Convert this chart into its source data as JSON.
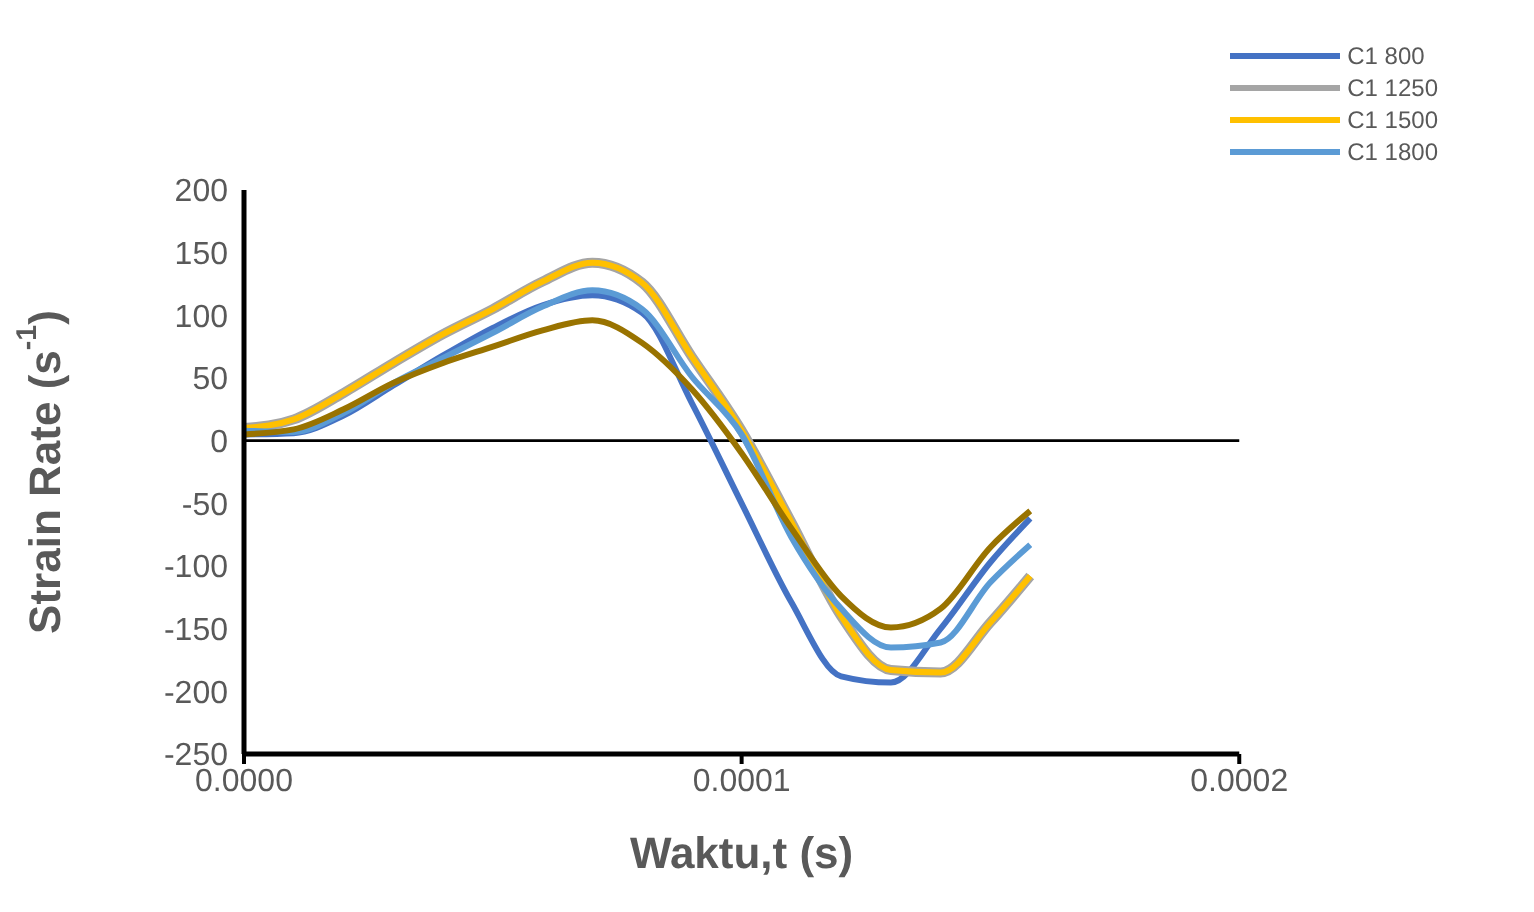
{
  "chart_data": {
    "type": "line",
    "xlabel": "Waktu,t (s)",
    "ylabel": "Strain Rate (s$^{-1}$)",
    "x": [
      0,
      1e-05,
      2e-05,
      3e-05,
      4e-05,
      5e-05,
      6e-05,
      7e-05,
      8e-05,
      9e-05,
      0.0001,
      0.00011,
      0.00012,
      0.00013,
      0.00014,
      0.00015,
      0.000158
    ],
    "series": [
      {
        "name": "C1 800",
        "color": "#4472c4",
        "values": [
          5,
          6,
          20,
          44,
          68,
          90,
          108,
          116,
          102,
          30,
          -50,
          -129,
          -188,
          -193,
          -150,
          -97,
          -62
        ]
      },
      {
        "name": "C1 1250",
        "color": "#a5a5a5",
        "values": [
          10,
          17,
          38,
          62,
          85,
          105,
          127,
          142,
          126,
          67,
          8,
          -65,
          -140,
          -183,
          -185,
          -145,
          -108
        ]
      },
      {
        "name": "C1 1500",
        "color": "#ffc000",
        "values": [
          10,
          17,
          38,
          62,
          85,
          105,
          127,
          142,
          126,
          67,
          8,
          -65,
          -140,
          -183,
          -185,
          -145,
          -108
        ]
      },
      {
        "name": "C1 1800",
        "color": "#5b9bd5",
        "values": [
          8,
          7,
          22,
          46,
          66,
          86,
          107,
          120,
          105,
          51,
          5,
          -77,
          -134,
          -165,
          -161,
          -113,
          -83
        ]
      },
      {
        "color": "#997300",
        "values": [
          5,
          9,
          25,
          46,
          62,
          75,
          88,
          96,
          78,
          41,
          -10,
          -70,
          -124,
          -149,
          -134,
          -85,
          -56
        ]
      }
    ],
    "xlim": [
      0,
      0.0002
    ],
    "xticks": [
      {
        "value": 0,
        "label": "0.0000"
      },
      {
        "value": 0.0001,
        "label": "0.0001"
      },
      {
        "value": 0.0002,
        "label": "0.0002"
      }
    ],
    "ylim": [
      -250,
      200
    ],
    "yticks": [
      -250,
      -200,
      -150,
      -100,
      -50,
      0,
      50,
      100,
      150,
      200
    ],
    "ref_lines": [
      {
        "axis": "y",
        "value": 0,
        "color": "#000000"
      }
    ],
    "legend": "top right",
    "marker": "none",
    "line_style": "solid"
  }
}
